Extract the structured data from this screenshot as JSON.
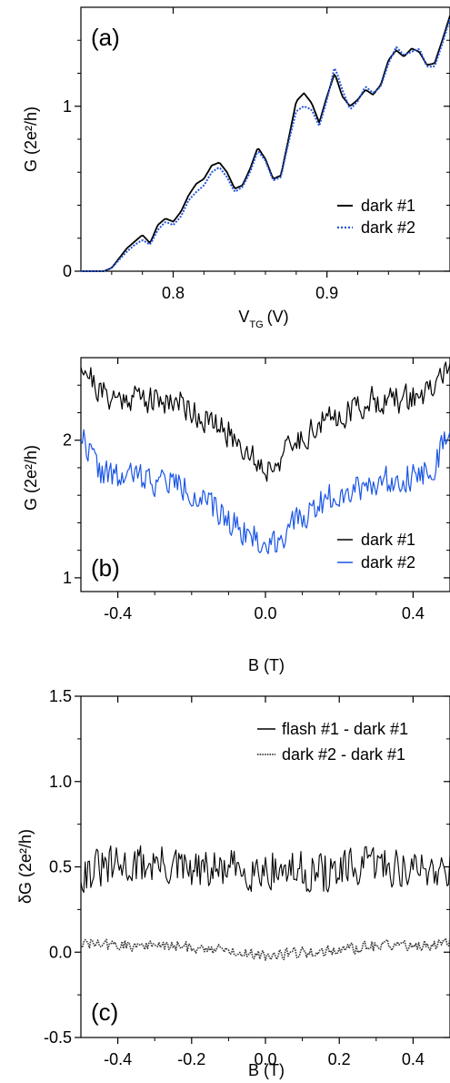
{
  "colors": {
    "dark1": "#000000",
    "dark2_a": "#2255dd",
    "dark2_b": "#1a55e6",
    "dotted_c": "#333333",
    "axis": "#000000"
  },
  "chart_data": [
    {
      "type": "line",
      "panel_label": "(a)",
      "xlabel": "V",
      "xlabel_sub": "TG",
      "xlabel_unit": "(V)",
      "ylabel": "G (2e²/h)",
      "xlim": [
        0.74,
        0.98
      ],
      "ylim": [
        0,
        1.6
      ],
      "xticks": [
        0.8,
        0.9
      ],
      "xtick_labels": [
        "0.8",
        "0.9"
      ],
      "yticks": [
        0,
        1
      ],
      "ytick_labels": [
        "0",
        "1"
      ],
      "legend": "right, lower",
      "legend_style": [
        "solid",
        "dotted"
      ],
      "series": [
        {
          "name": "dark #1",
          "x": [
            0.74,
            0.755,
            0.76,
            0.765,
            0.77,
            0.775,
            0.78,
            0.785,
            0.79,
            0.795,
            0.8,
            0.805,
            0.81,
            0.815,
            0.82,
            0.825,
            0.83,
            0.835,
            0.84,
            0.845,
            0.85,
            0.855,
            0.86,
            0.865,
            0.87,
            0.875,
            0.88,
            0.885,
            0.89,
            0.895,
            0.9,
            0.905,
            0.91,
            0.915,
            0.92,
            0.925,
            0.93,
            0.935,
            0.94,
            0.945,
            0.95,
            0.955,
            0.96,
            0.965,
            0.97,
            0.975,
            0.98
          ],
          "y": [
            0.0,
            0.0,
            0.02,
            0.08,
            0.14,
            0.18,
            0.22,
            0.17,
            0.28,
            0.32,
            0.3,
            0.36,
            0.46,
            0.53,
            0.56,
            0.64,
            0.66,
            0.6,
            0.5,
            0.52,
            0.62,
            0.75,
            0.68,
            0.56,
            0.58,
            0.8,
            1.03,
            1.08,
            1.02,
            0.9,
            1.06,
            1.2,
            1.06,
            1.0,
            1.04,
            1.1,
            1.07,
            1.13,
            1.28,
            1.34,
            1.3,
            1.35,
            1.33,
            1.25,
            1.26,
            1.4,
            1.55
          ]
        },
        {
          "name": "dark #2",
          "x": [
            0.74,
            0.755,
            0.76,
            0.765,
            0.77,
            0.775,
            0.78,
            0.785,
            0.79,
            0.795,
            0.8,
            0.805,
            0.81,
            0.815,
            0.82,
            0.825,
            0.83,
            0.835,
            0.84,
            0.845,
            0.85,
            0.855,
            0.86,
            0.865,
            0.87,
            0.875,
            0.88,
            0.885,
            0.89,
            0.895,
            0.9,
            0.905,
            0.91,
            0.915,
            0.92,
            0.925,
            0.93,
            0.935,
            0.94,
            0.945,
            0.95,
            0.955,
            0.96,
            0.965,
            0.97,
            0.975,
            0.98
          ],
          "y": [
            0.0,
            0.0,
            0.02,
            0.07,
            0.12,
            0.16,
            0.19,
            0.16,
            0.25,
            0.3,
            0.28,
            0.33,
            0.43,
            0.48,
            0.52,
            0.6,
            0.63,
            0.57,
            0.48,
            0.51,
            0.6,
            0.73,
            0.67,
            0.55,
            0.57,
            0.78,
            0.97,
            1.0,
            0.98,
            0.88,
            1.04,
            1.24,
            1.1,
            0.98,
            1.03,
            1.12,
            1.08,
            1.12,
            1.26,
            1.36,
            1.31,
            1.33,
            1.35,
            1.24,
            1.24,
            1.38,
            1.53
          ]
        }
      ]
    },
    {
      "type": "line",
      "panel_label": "(b)",
      "xlabel": "B (T)",
      "ylabel": "G (2e²/h)",
      "xlim": [
        -0.5,
        0.5
      ],
      "ylim": [
        0.9,
        2.6
      ],
      "xticks": [
        -0.4,
        0.0,
        0.4
      ],
      "xtick_labels": [
        "-0.4",
        "0.0",
        "0.4"
      ],
      "yticks": [
        1,
        2
      ],
      "ytick_labels": [
        "1",
        "2"
      ],
      "legend": "right, lower",
      "legend_style": [
        "solid",
        "solid"
      ],
      "series": [
        {
          "name": "dark #1",
          "x": [
            -0.5,
            -0.45,
            -0.4,
            -0.35,
            -0.3,
            -0.25,
            -0.2,
            -0.15,
            -0.1,
            -0.05,
            0.0,
            0.05,
            0.1,
            0.15,
            0.2,
            0.25,
            0.3,
            0.35,
            0.4,
            0.45,
            0.5
          ],
          "y": [
            2.58,
            2.35,
            2.3,
            2.33,
            2.28,
            2.3,
            2.22,
            2.12,
            2.05,
            1.93,
            1.78,
            1.9,
            2.02,
            2.12,
            2.18,
            2.24,
            2.3,
            2.28,
            2.32,
            2.35,
            2.58
          ]
        },
        {
          "name": "dark #2",
          "x": [
            -0.5,
            -0.45,
            -0.4,
            -0.35,
            -0.3,
            -0.25,
            -0.2,
            -0.15,
            -0.1,
            -0.05,
            0.0,
            0.05,
            0.1,
            0.15,
            0.2,
            0.25,
            0.3,
            0.35,
            0.4,
            0.45,
            0.5
          ],
          "y": [
            2.05,
            1.78,
            1.72,
            1.75,
            1.7,
            1.7,
            1.62,
            1.52,
            1.42,
            1.33,
            1.22,
            1.32,
            1.44,
            1.55,
            1.62,
            1.66,
            1.7,
            1.72,
            1.74,
            1.78,
            2.05
          ]
        }
      ]
    },
    {
      "type": "line",
      "panel_label": "(c)",
      "xlabel": "B (T)",
      "ylabel": "δG (2e²/h)",
      "xlim": [
        -0.5,
        0.5
      ],
      "ylim": [
        -0.5,
        1.5
      ],
      "xticks": [
        -0.4,
        -0.2,
        0.0,
        0.2,
        0.4
      ],
      "xtick_labels": [
        "-0.4",
        "-0.2",
        "0.0",
        "0.2",
        "0.4"
      ],
      "yticks": [
        -0.5,
        0.0,
        0.5,
        1.0,
        1.5
      ],
      "ytick_labels": [
        "-0.5",
        "0.0",
        "0.5",
        "1.0",
        "1.5"
      ],
      "legend": "top-right",
      "legend_style": [
        "solid",
        "dotted"
      ],
      "series": [
        {
          "name": "flash #1 - dark #1",
          "x": [
            -0.5,
            -0.4,
            -0.3,
            -0.2,
            -0.1,
            0.0,
            0.1,
            0.2,
            0.3,
            0.4,
            0.5
          ],
          "y": [
            0.47,
            0.5,
            0.52,
            0.47,
            0.48,
            0.49,
            0.47,
            0.46,
            0.52,
            0.48,
            0.5
          ]
        },
        {
          "name": "dark #2 - dark #1",
          "x": [
            -0.5,
            -0.4,
            -0.3,
            -0.2,
            -0.1,
            0.0,
            0.1,
            0.2,
            0.3,
            0.4,
            0.5
          ],
          "y": [
            0.05,
            0.04,
            0.04,
            0.03,
            0.01,
            -0.02,
            0.0,
            0.01,
            0.04,
            0.04,
            0.05
          ]
        }
      ]
    }
  ]
}
